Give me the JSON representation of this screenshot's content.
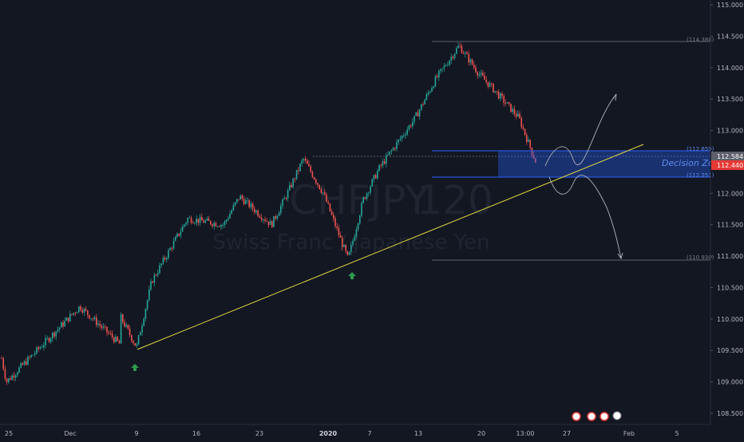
{
  "chart_data": {
    "type": "candlestick",
    "symbol": "CHFJPY",
    "interval": "120",
    "description": "Swiss Franc / Japanese Yen",
    "y_axis": {
      "range": [
        108.4,
        115.1
      ],
      "ticks": [
        "115.000",
        "114.500",
        "114.000",
        "113.500",
        "113.000",
        "112.500",
        "112.000",
        "111.500",
        "111.000",
        "110.500",
        "110.000",
        "109.500",
        "109.000",
        "108.500"
      ]
    },
    "x_axis": {
      "ticks": [
        "25",
        "Dec",
        "9",
        "16",
        "23",
        "2020",
        "7",
        "13",
        "20",
        "13:00",
        "27",
        "Feb",
        "5"
      ]
    },
    "price_path": [
      {
        "t": "Nov 25",
        "price": 109.5
      },
      {
        "t": "",
        "price": 109.0
      },
      {
        "t": "",
        "price": 110.2
      },
      {
        "t": "",
        "price": 109.6
      },
      {
        "t": "",
        "price": 110.3
      },
      {
        "t": "Dec 9",
        "price": 109.55
      },
      {
        "t": "",
        "price": 110.6
      },
      {
        "t": "",
        "price": 111.6
      },
      {
        "t": "Dec 16",
        "price": 111.5
      },
      {
        "t": "",
        "price": 111.95
      },
      {
        "t": "Dec 23",
        "price": 111.5
      },
      {
        "t": "",
        "price": 112.0
      },
      {
        "t": "",
        "price": 112.55
      },
      {
        "t": "",
        "price": 112.0
      },
      {
        "t": "Jan 3",
        "price": 110.95
      },
      {
        "t": "",
        "price": 111.9
      },
      {
        "t": "",
        "price": 112.4
      },
      {
        "t": "Jan 13",
        "price": 113.2
      },
      {
        "t": "",
        "price": 113.8
      },
      {
        "t": "Jan 17",
        "price": 114.35
      },
      {
        "t": "",
        "price": 113.9
      },
      {
        "t": "Jan 20",
        "price": 113.7
      },
      {
        "t": "",
        "price": 113.2
      },
      {
        "t": "",
        "price": 112.44
      }
    ],
    "levels": {
      "high": "(114.388)",
      "zone_top": "(112.659)",
      "zone_bottom": "(112.251)",
      "low": "(110.930)"
    },
    "zone_label": "Decision Zone",
    "price_labels": {
      "gray": "112.584",
      "current": "112.440"
    },
    "colors": {
      "background": "#131722",
      "up": "#26a69a",
      "down": "#ef5350",
      "trendline": "#e0d642",
      "zone": "#2962ff",
      "arrow": "#2e9b4d",
      "current_tag": "#e53935",
      "gray_tag": "#5d606b"
    }
  }
}
